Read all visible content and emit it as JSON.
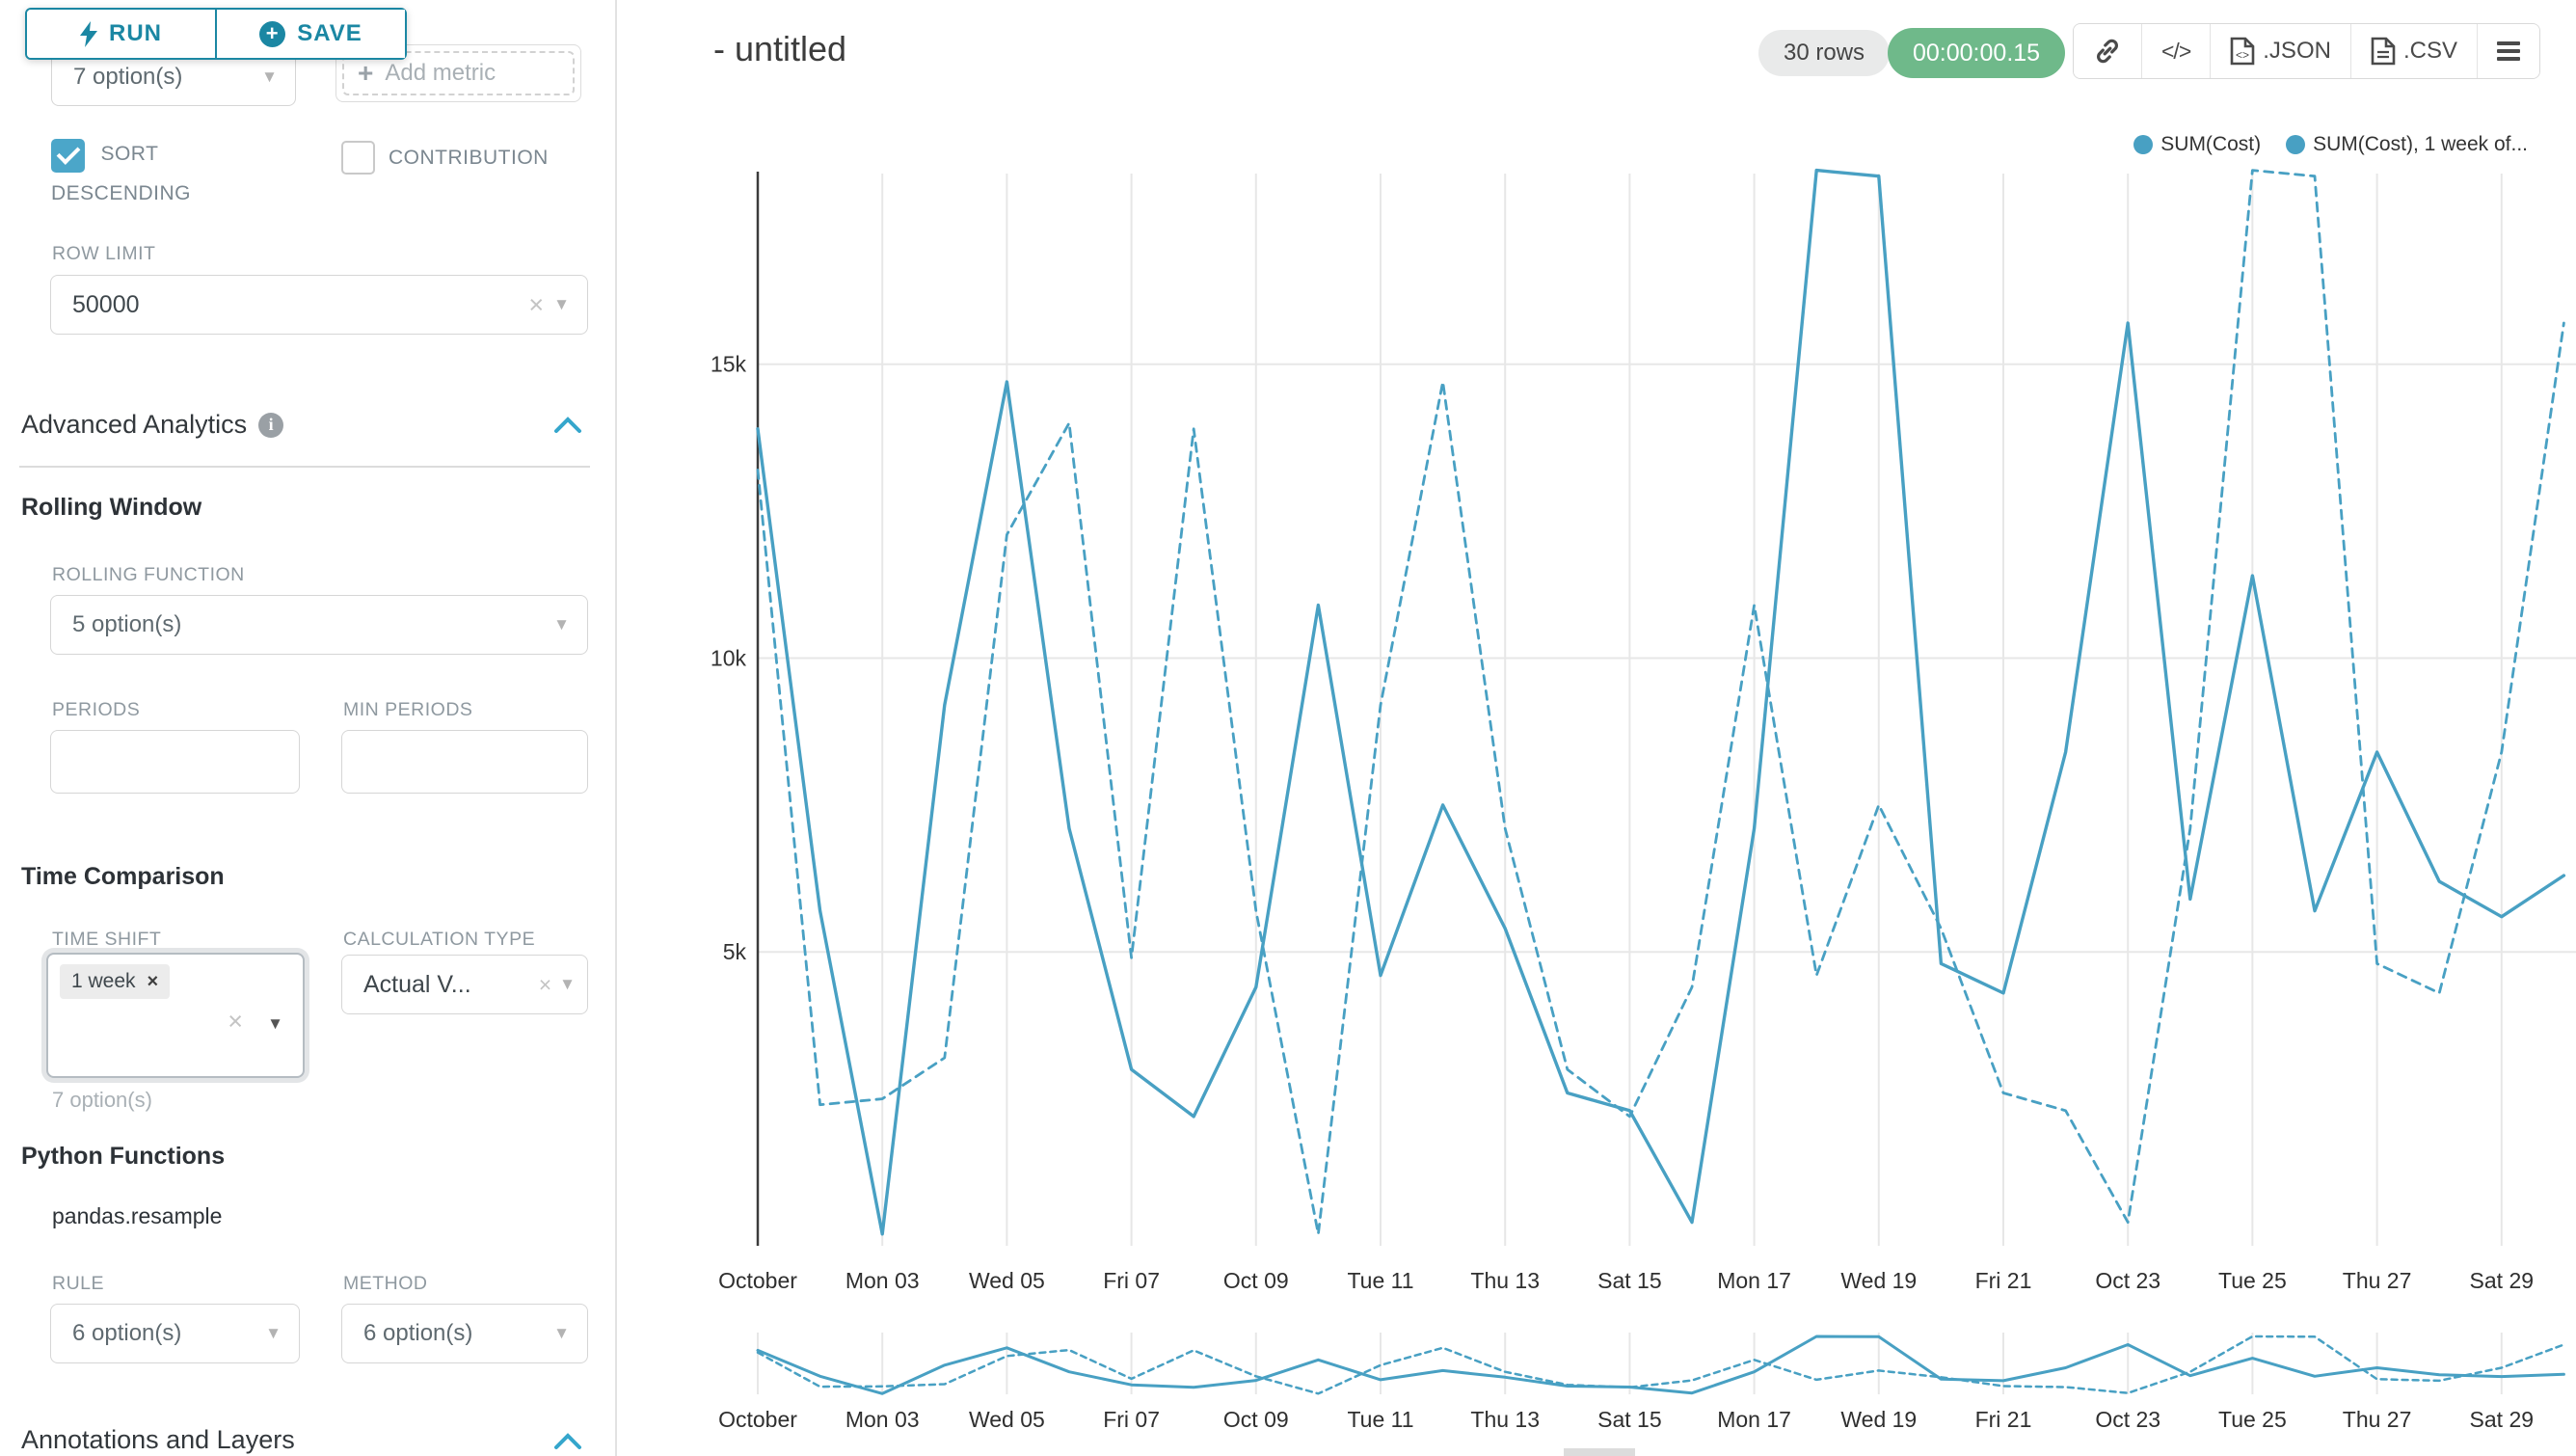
{
  "accent": {
    "teal_button": "#1b87a3",
    "teal_light": "#4ba6c9",
    "chevron": "#35a6cc",
    "series_line": "#48a0c3",
    "timer_green": "#6fb98a"
  },
  "sidebar": {
    "run_label": "RUN",
    "save_label": "SAVE",
    "metric_select_value": "7 option(s)",
    "add_metric_label": "Add metric",
    "sort_descending_label": "SORT DESCENDING",
    "contribution_label": "CONTRIBUTION",
    "row_limit_label": "ROW LIMIT",
    "row_limit_value": "50000",
    "advanced_analytics_title": "Advanced Analytics",
    "rolling_window_title": "Rolling Window",
    "rolling_function_label": "ROLLING FUNCTION",
    "rolling_function_value": "5 option(s)",
    "periods_label": "PERIODS",
    "min_periods_label": "MIN PERIODS",
    "periods_value": "",
    "min_periods_value": "",
    "time_comparison_title": "Time Comparison",
    "time_shift_label": "TIME SHIFT",
    "time_shift_tag": "1 week",
    "time_shift_helper": "7 option(s)",
    "calculation_type_label": "CALCULATION TYPE",
    "calculation_type_value": "Actual V...",
    "python_functions_title": "Python Functions",
    "pandas_resample_label": "pandas.resample",
    "rule_label": "RULE",
    "rule_value": "6 option(s)",
    "method_label": "METHOD",
    "method_value": "6 option(s)",
    "annotations_title": "Annotations and Layers"
  },
  "header": {
    "title": "- untitled",
    "rows_badge": "30 rows",
    "timer_badge": "00:00:00.15",
    "json_label": ".JSON",
    "csv_label": ".CSV"
  },
  "chart_data": {
    "type": "line",
    "title": "- untitled",
    "xlabel": "",
    "ylabel": "",
    "ylim": [
      0,
      18300
    ],
    "grid": true,
    "legend_position": "top-right",
    "color": "#48a0c3",
    "has_context_brush_chart": true,
    "categories": [
      "Oct 01",
      "Oct 02",
      "Oct 03",
      "Oct 04",
      "Oct 05",
      "Oct 06",
      "Oct 07",
      "Oct 08",
      "Oct 09",
      "Oct 10",
      "Oct 11",
      "Oct 12",
      "Oct 13",
      "Oct 14",
      "Oct 15",
      "Oct 16",
      "Oct 17",
      "Oct 18",
      "Oct 19",
      "Oct 20",
      "Oct 21",
      "Oct 22",
      "Oct 23",
      "Oct 24",
      "Oct 25",
      "Oct 26",
      "Oct 27",
      "Oct 28",
      "Oct 29",
      "Oct 30"
    ],
    "x_tick_labels": [
      "October",
      "Mon 03",
      "Wed 05",
      "Fri 07",
      "Oct 09",
      "Tue 11",
      "Thu 13",
      "Sat 15",
      "Mon 17",
      "Wed 19",
      "Fri 21",
      "Oct 23",
      "Tue 25",
      "Thu 27",
      "Sat 29"
    ],
    "y_ticks": [
      {
        "label": "5k",
        "value": 5000
      },
      {
        "label": "10k",
        "value": 10000
      },
      {
        "label": "15k",
        "value": 15000
      }
    ],
    "series": [
      {
        "name": "SUM(Cost)",
        "legend_label": "SUM(Cost)",
        "line_style": "solid",
        "values": [
          13900,
          5700,
          200,
          9200,
          14700,
          7100,
          3000,
          2200,
          4400,
          10900,
          4600,
          7500,
          5400,
          2600,
          2300,
          400,
          7100,
          18300,
          18200,
          4800,
          4300,
          8400,
          15700,
          5900,
          11400,
          5700,
          8400,
          6200,
          5600,
          6300
        ]
      },
      {
        "name": "SUM(Cost), 1 week offset",
        "legend_label": "SUM(Cost), 1 week of...",
        "line_style": "dashed",
        "values": [
          13200,
          2400,
          2500,
          3200,
          12100,
          14000,
          4900,
          13900,
          5700,
          200,
          9200,
          14700,
          7100,
          3000,
          2200,
          4400,
          10900,
          4600,
          7500,
          5400,
          2600,
          2300,
          400,
          7100,
          18300,
          18200,
          4800,
          4300,
          8400,
          15700
        ]
      }
    ]
  }
}
